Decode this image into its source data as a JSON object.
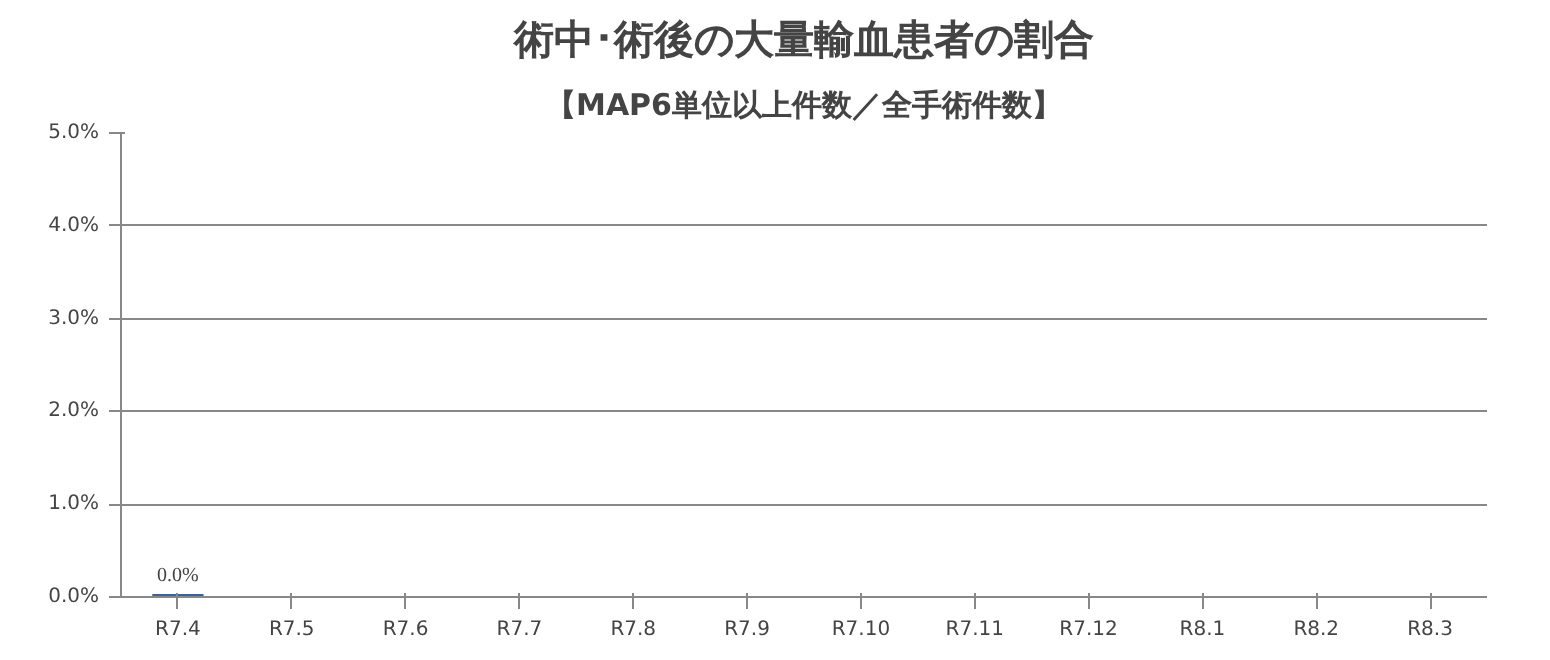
{
  "chart_data": {
    "type": "bar",
    "title": "術中･術後の大量輸血患者の割合",
    "subtitle": "【MAP6単位以上件数／全手術件数】",
    "categories": [
      "R7.4",
      "R7.5",
      "R7.6",
      "R7.7",
      "R7.8",
      "R7.9",
      "R7.10",
      "R7.11",
      "R7.12",
      "R8.1",
      "R8.2",
      "R8.3"
    ],
    "values": [
      0,
      null,
      null,
      null,
      null,
      null,
      null,
      null,
      null,
      null,
      null,
      null
    ],
    "value_labels": [
      "0.0%",
      null,
      null,
      null,
      null,
      null,
      null,
      null,
      null,
      null,
      null,
      null
    ],
    "color": "#3b6396",
    "ylim": [
      0,
      5
    ],
    "yticks": [
      {
        "value": 0,
        "label": "0.0%"
      },
      {
        "value": 1,
        "label": "1.0%"
      },
      {
        "value": 2,
        "label": "2.0%"
      },
      {
        "value": 3,
        "label": "3.0%"
      },
      {
        "value": 4,
        "label": "4.0%"
      },
      {
        "value": 5,
        "label": "5.0%"
      }
    ],
    "grid": "y"
  }
}
